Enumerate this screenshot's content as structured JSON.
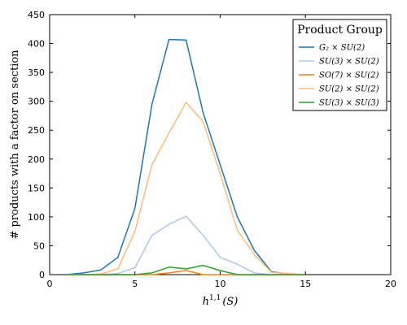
{
  "chart_data": {
    "type": "line",
    "xlabel": "h^{1,1}(S)",
    "xlabel_main": "h",
    "xlabel_sup": "1,1",
    "xlabel_arg": "(S)",
    "ylabel": "# products with a factor on section",
    "xlim": [
      0,
      20
    ],
    "ylim": [
      0,
      450
    ],
    "xticks": [
      0,
      5,
      10,
      15,
      20
    ],
    "yticks": [
      0,
      50,
      100,
      150,
      200,
      250,
      300,
      350,
      400,
      450
    ],
    "grid": false,
    "legend": {
      "title": "Product Group",
      "position": "top-right"
    },
    "x": [
      1,
      2,
      3,
      4,
      5,
      6,
      7,
      8,
      9,
      10,
      11,
      12,
      13,
      14,
      15
    ],
    "series": [
      {
        "name": "G₂ × SU(2)",
        "color": "#1f77b4",
        "values": [
          0,
          3,
          8,
          30,
          115,
          295,
          407,
          406,
          280,
          190,
          100,
          42,
          5,
          1,
          0
        ]
      },
      {
        "name": "SU(3) × SU(2)",
        "color": "#aec7e8",
        "values": [
          0,
          0,
          0,
          2,
          12,
          68,
          87,
          101,
          68,
          30,
          18,
          3,
          0,
          0,
          0
        ]
      },
      {
        "name": "SO(7) × SU(2)",
        "color": "#ff7f0e",
        "values": [
          0,
          0,
          0,
          0,
          0,
          0,
          3,
          7,
          0,
          0,
          0,
          0,
          0,
          0,
          0
        ]
      },
      {
        "name": "SU(2) × SU(2)",
        "color": "#ffbb78",
        "values": [
          0,
          0,
          1,
          10,
          75,
          190,
          245,
          298,
          265,
          175,
          77,
          35,
          4,
          2,
          0
        ]
      },
      {
        "name": "SU(3) × SU(3)",
        "color": "#2ca02c",
        "values": [
          0,
          0,
          0,
          0,
          0,
          3,
          13,
          10,
          16,
          7,
          0,
          0,
          0,
          0,
          0
        ]
      }
    ]
  }
}
